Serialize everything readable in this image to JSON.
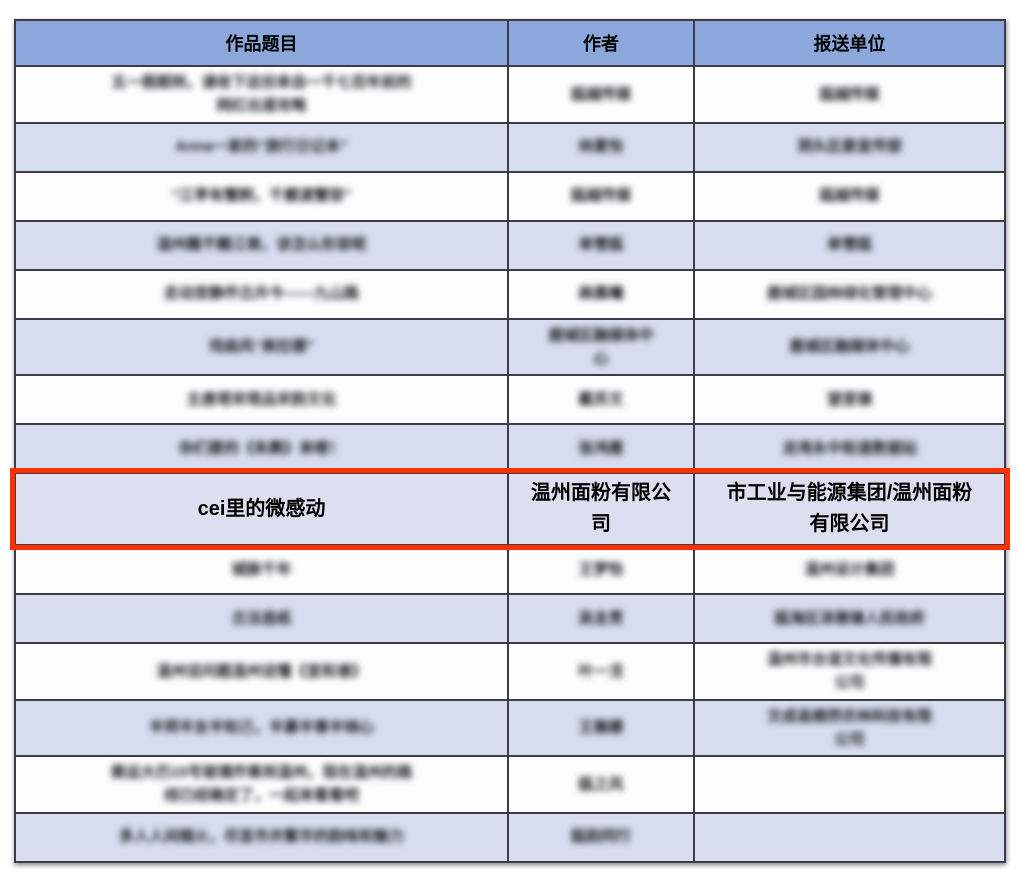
{
  "table": {
    "columns": [
      {
        "label": "作品题目"
      },
      {
        "label": "作者"
      },
      {
        "label": "报送单位"
      }
    ],
    "rows": [
      {
        "title": "五一假期到，请收下这份来自一千七百年前的\n网红出道攻略",
        "author": "瓯越传媒",
        "unit": "瓯越传媒",
        "bg": "white",
        "blurred": true,
        "highlighted": false
      },
      {
        "title": "Anna一家的“旅行日记本”",
        "author": "林夏怡",
        "unit": "洞头区委宣传部",
        "bg": "blue",
        "blurred": true,
        "highlighted": false
      },
      {
        "title": "“江亭有蟹舸，千艘渡蟹容”",
        "author": "瓯越传媒",
        "unit": "瓯越传媒",
        "bg": "white",
        "blurred": true,
        "highlighted": false
      },
      {
        "title": "温州籍不籍江南，该怎么形容呢",
        "author": "单雪瓯",
        "unit": "单雪瓯",
        "bg": "blue",
        "blurred": true,
        "highlighted": false
      },
      {
        "title": "走动宫静乔古卉今——九山路",
        "author": "麻晨曦",
        "unit": "鹿城区园林绿化管理中心",
        "bg": "white",
        "blurred": true,
        "highlighted": false
      },
      {
        "title": "戏曲风“美拉德”",
        "author": "鹿城区融媒体中\n心",
        "unit": "鹿城区融媒体中心",
        "bg": "blue",
        "blurred": true,
        "highlighted": false
      },
      {
        "title": "主唐塔宋塔品宋韵文化",
        "author": "戴苏文",
        "unit": "望里镇",
        "bg": "white",
        "blurred": true,
        "highlighted": false
      },
      {
        "title": "你们要的《朱鹮》来喽！",
        "author": "张鸿雁",
        "unit": "龙湾永中街道数据站",
        "bg": "blue",
        "blurred": true,
        "highlighted": false
      },
      {
        "title": "cei里的微感动",
        "author": "温州面粉有限公\n司",
        "unit": "市工业与能源集团/温州面粉\n有限公司",
        "bg": "highlight",
        "blurred": false,
        "highlighted": true
      },
      {
        "title": "城脉千年",
        "author": "王梦怡",
        "unit": "温州设计集团",
        "bg": "white",
        "blurred": true,
        "highlighted": false
      },
      {
        "title": "古法造纸",
        "author": "吴圭贯",
        "unit": "瓯海区泽雅镇人民政府",
        "bg": "blue",
        "blurred": true,
        "highlighted": false
      },
      {
        "title": "温州话问题温州话懂《宣和谱》",
        "author": "叶一戈",
        "unit": "温州市台谊文化传播有限\n公司",
        "bg": "white",
        "blurred": true,
        "highlighted": false
      },
      {
        "title": "半师半友半知己，半慕半尊半倾心",
        "author": "王薇娜",
        "unit": "文成县顺然农林科技有限\n公司",
        "bg": "blue",
        "blurred": true,
        "highlighted": false
      },
      {
        "title": "乘运大巴15号玻璃乔乘到温州，现在温州的路\n线已经确定了，一起来看看吧",
        "author": "瓯之风",
        "unit": "",
        "bg": "white",
        "blurred": true,
        "highlighted": false
      },
      {
        "title": "多人人间烟火，尽显市井繁华的韵味和魅力",
        "author": "瓯韵同行",
        "unit": "",
        "bg": "blue",
        "blurred": true,
        "highlighted": false
      }
    ]
  },
  "colors": {
    "header_bg": "#8CA7DB",
    "alt_row_bg": "#D7DDEE",
    "highlight_row_bg": "#DBDFF0",
    "highlight_border": "#FF3000",
    "grid_border": "#3C3C48"
  }
}
